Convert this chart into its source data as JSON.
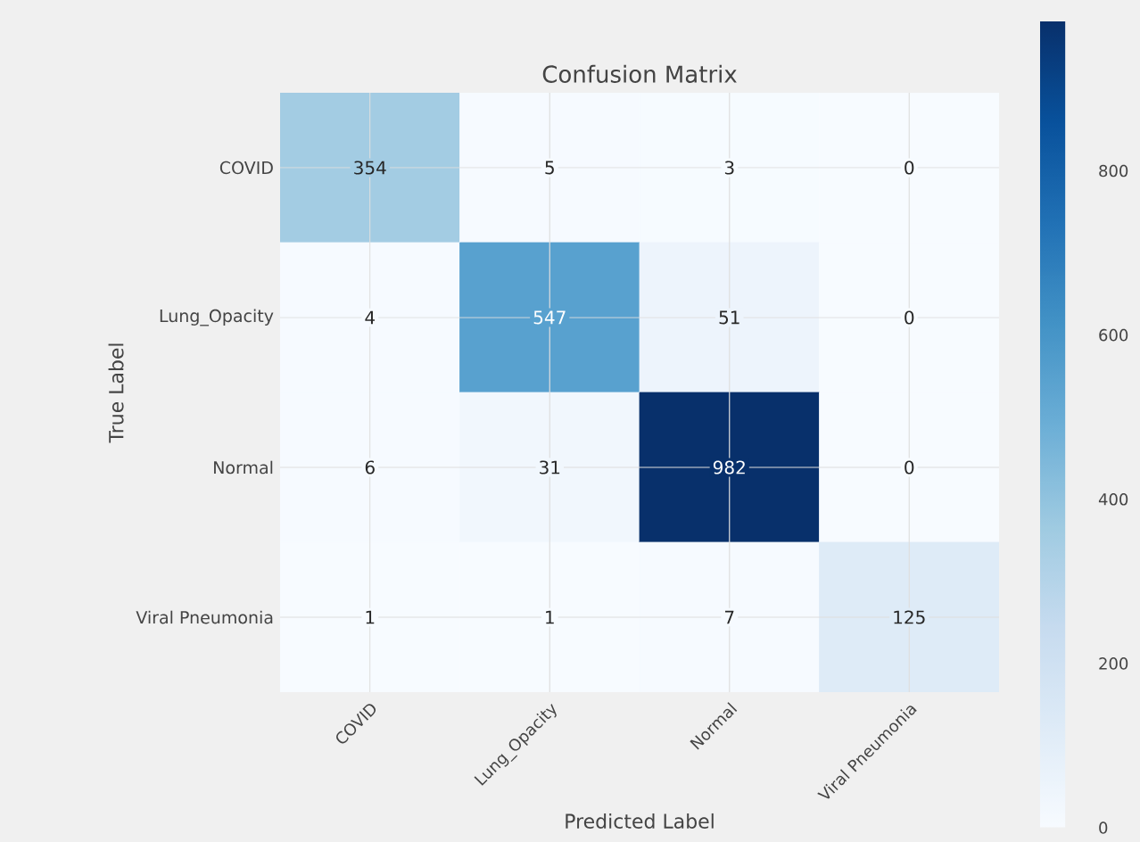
{
  "chart_data": {
    "type": "heatmap",
    "title": "Confusion Matrix",
    "xlabel": "Predicted Label",
    "ylabel": "True Label",
    "categories": [
      "COVID",
      "Lung_Opacity",
      "Normal",
      "Viral Pneumonia"
    ],
    "y_categories": [
      "COVID",
      "Lung_Opacity",
      "Normal",
      "Viral Pneumonia"
    ],
    "cells": [
      [
        354,
        5,
        3,
        0
      ],
      [
        4,
        547,
        51,
        0
      ],
      [
        6,
        31,
        982,
        0
      ],
      [
        1,
        1,
        7,
        125
      ]
    ],
    "data_labels": true,
    "grid": true,
    "clim": [
      0,
      982
    ],
    "cticks": [
      0,
      200,
      400,
      600,
      800
    ]
  }
}
